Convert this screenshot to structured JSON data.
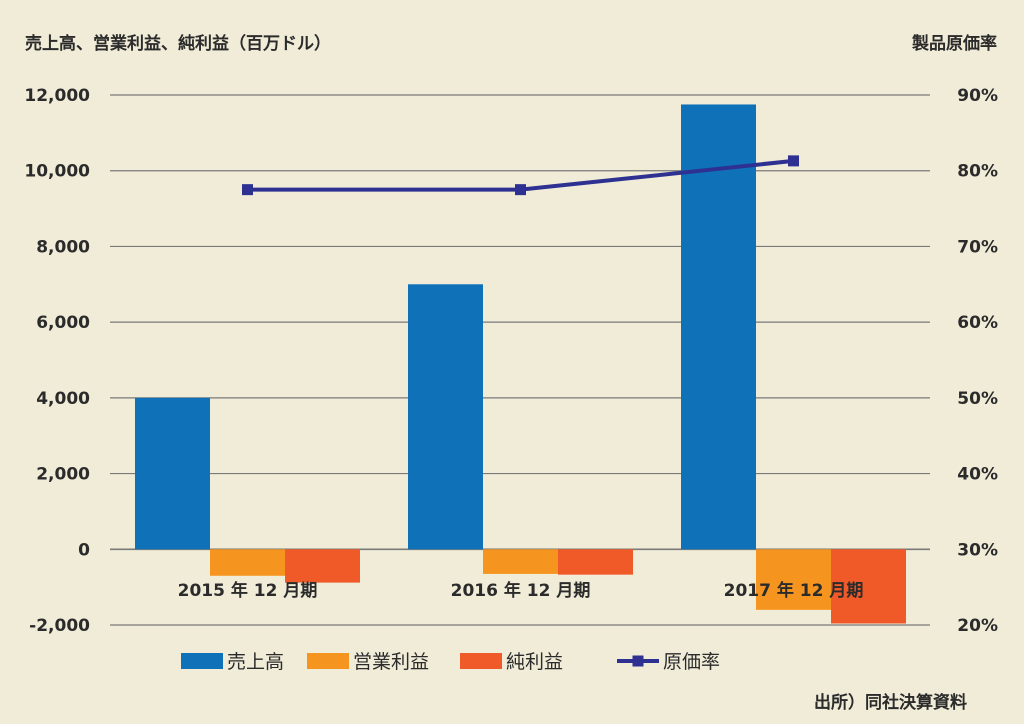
{
  "chart_data": {
    "type": "bar",
    "left_axis_title": "売上高、営業利益、純利益（百万ドル）",
    "right_axis_title": "製品原価率",
    "categories": [
      "2015 年 12 月期",
      "2016 年 12 月期",
      "2017 年 12 月期"
    ],
    "y_left": {
      "min": -2000,
      "max": 12000,
      "step": 2000,
      "ticks": [
        "12,000",
        "10,000",
        "8,000",
        "6,000",
        "4,000",
        "2,000",
        "0",
        "-2,000"
      ]
    },
    "y_right": {
      "min": 20,
      "max": 90,
      "step": 10,
      "ticks": [
        "90%",
        "80%",
        "70%",
        "60%",
        "50%",
        "40%",
        "30%",
        "20%"
      ]
    },
    "series": [
      {
        "name": "売上高",
        "kind": "bar",
        "axis": "left",
        "color": "#0f72b9",
        "values": [
          4000,
          7000,
          11750
        ]
      },
      {
        "name": "営業利益",
        "kind": "bar",
        "axis": "left",
        "color": "#f5951f",
        "values": [
          -700,
          -650,
          -1600
        ]
      },
      {
        "name": "純利益",
        "kind": "bar",
        "axis": "left",
        "color": "#f05a28",
        "values": [
          -880,
          -670,
          -1960
        ]
      },
      {
        "name": "原価率",
        "kind": "line",
        "axis": "right",
        "color": "#2e3192",
        "values": [
          77.5,
          77.5,
          81.3
        ]
      }
    ],
    "grid": true,
    "legend_position": "bottom",
    "source_note": "出所）同社決算資料"
  }
}
